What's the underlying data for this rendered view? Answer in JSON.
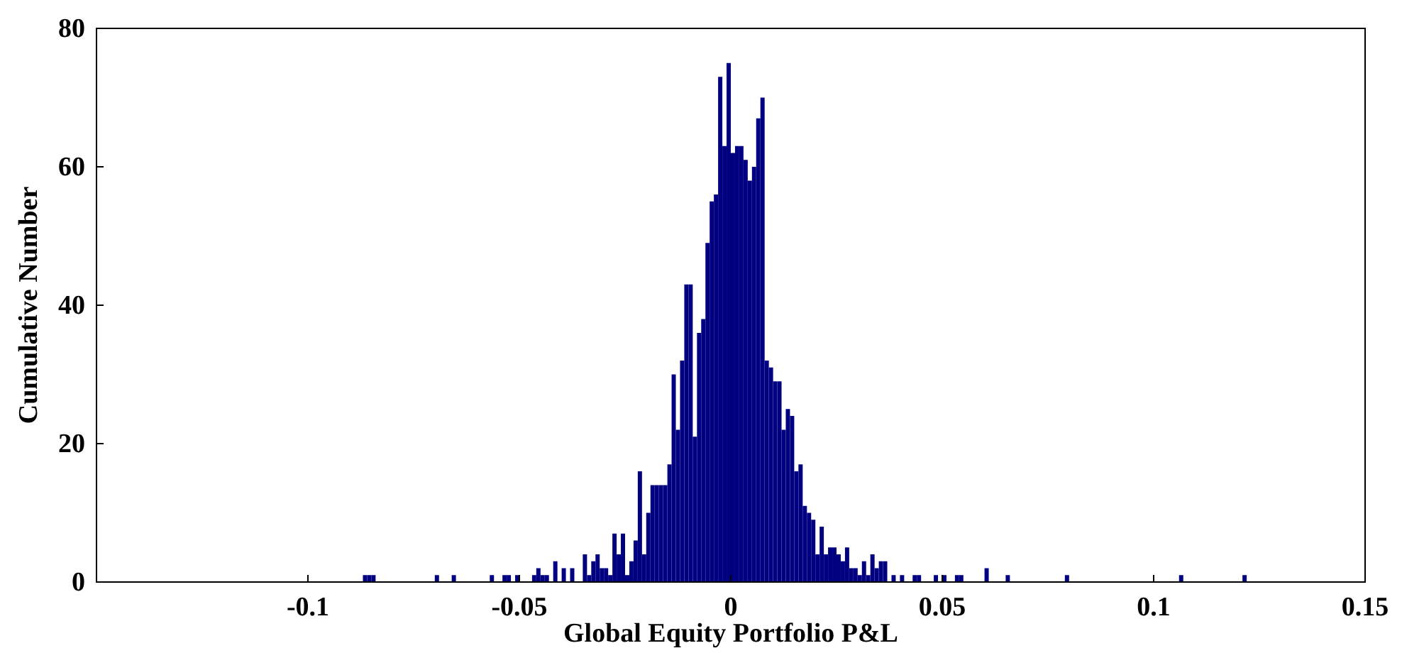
{
  "chart_data": {
    "type": "histogram",
    "xlabel": "Global Equity Portfolio P&L",
    "ylabel": "Cumulative Number",
    "color": "#000080",
    "bins": [
      -0.087,
      -0.086,
      -0.085,
      -0.084,
      -0.083,
      -0.082,
      -0.081,
      -0.08,
      -0.079,
      -0.078,
      -0.077,
      -0.076,
      -0.075,
      -0.074,
      -0.073,
      -0.072,
      -0.071,
      -0.07,
      -0.069,
      -0.068,
      -0.067,
      -0.066,
      -0.065,
      -0.064,
      -0.063,
      -0.062,
      -0.061,
      -0.06,
      -0.059,
      -0.058,
      -0.057,
      -0.056,
      -0.055,
      -0.054,
      -0.053,
      -0.052,
      -0.051,
      -0.05,
      -0.049,
      -0.048,
      -0.047,
      -0.046,
      -0.045,
      -0.044,
      -0.043,
      -0.042,
      -0.041,
      -0.04,
      -0.039,
      -0.038,
      -0.037,
      -0.036,
      -0.035,
      -0.034,
      -0.033,
      -0.032,
      -0.031,
      -0.03,
      -0.029,
      -0.028,
      -0.027,
      -0.026,
      -0.025,
      -0.024,
      -0.023,
      -0.022,
      -0.021,
      -0.02,
      -0.019,
      -0.018,
      -0.017,
      -0.016,
      -0.015,
      -0.014,
      -0.013,
      -0.012,
      -0.011,
      -0.01,
      -0.009,
      -0.008,
      -0.007,
      -0.006,
      -0.005,
      -0.004,
      -0.003,
      -0.002,
      -0.001,
      0,
      0.001,
      0.002,
      0.003,
      0.004,
      0.005,
      0.006,
      0.007,
      0.008,
      0.009,
      0.01,
      0.011,
      0.012,
      0.013,
      0.014,
      0.015,
      0.016,
      0.017,
      0.018,
      0.019,
      0.02,
      0.021,
      0.022,
      0.023,
      0.024,
      0.025,
      0.026,
      0.027,
      0.028,
      0.029,
      0.03,
      0.031,
      0.032,
      0.033,
      0.034,
      0.035,
      0.036,
      0.037,
      0.038,
      0.039,
      0.04,
      0.041,
      0.042,
      0.043,
      0.044,
      0.045,
      0.046,
      0.047,
      0.048,
      0.049,
      0.05,
      0.051,
      0.052,
      0.053,
      0.054,
      0.055,
      0.056,
      0.057,
      0.058,
      0.059,
      0.06,
      0.061,
      0.062,
      0.063,
      0.064,
      0.065,
      0.066,
      0.067,
      0.068,
      0.069,
      0.07,
      0.071,
      0.072,
      0.073,
      0.074,
      0.075,
      0.076,
      0.077,
      0.078,
      0.079,
      0.08,
      0.081,
      0.082,
      0.083,
      0.084,
      0.085,
      0.086,
      0.087,
      0.088,
      0.089,
      0.09,
      0.091,
      0.092,
      0.093,
      0.094,
      0.095,
      0.096,
      0.097,
      0.098,
      0.099,
      0.1,
      0.101,
      0.102,
      0.103,
      0.104,
      0.105,
      0.106,
      0.107,
      0.108,
      0.109,
      0.11,
      0.111,
      0.112,
      0.113,
      0.114,
      0.115,
      0.116,
      0.117,
      0.118,
      0.119,
      0.12,
      0.121,
      0.122
    ],
    "values": [
      1,
      1,
      1,
      0,
      0,
      0,
      0,
      0,
      0,
      0,
      0,
      0,
      0,
      0,
      0,
      0,
      0,
      1,
      0,
      0,
      0,
      1,
      0,
      0,
      0,
      0,
      0,
      0,
      0,
      0,
      1,
      0,
      0,
      1,
      1,
      0,
      1,
      0,
      0,
      0,
      1,
      2,
      1,
      1,
      0,
      3,
      0,
      2,
      0,
      2,
      0,
      0,
      4,
      1,
      3,
      4,
      2,
      2,
      1,
      7,
      4,
      7,
      1,
      3,
      6,
      16,
      4,
      10,
      14,
      14,
      14,
      14,
      17,
      30,
      22,
      32,
      43,
      43,
      21,
      36,
      38,
      49,
      55,
      56,
      73,
      63,
      75,
      62,
      63,
      63,
      61,
      58,
      60,
      67,
      70,
      32,
      31,
      29,
      29,
      22,
      25,
      24,
      16,
      17,
      11,
      10,
      9,
      4,
      8,
      4,
      5,
      5,
      4,
      3,
      5,
      2,
      2,
      1,
      3,
      1,
      4,
      2,
      3,
      3,
      0,
      1,
      0,
      1,
      0,
      0,
      1,
      1,
      0,
      0,
      0,
      1,
      0,
      1,
      0,
      0,
      1,
      1,
      0,
      0,
      0,
      0,
      0,
      2,
      0,
      0,
      0,
      0,
      1,
      0,
      0,
      0,
      0,
      0,
      0,
      0,
      0,
      0,
      0,
      0,
      0,
      0,
      1,
      0,
      0,
      0,
      0,
      0,
      0,
      0,
      0,
      0,
      0,
      0,
      0,
      0,
      0,
      0,
      0,
      0,
      0,
      0,
      0,
      0,
      0,
      0,
      0,
      0,
      0,
      1,
      0,
      0,
      0,
      0,
      0,
      0,
      0,
      0,
      0,
      0,
      0,
      0,
      0,
      0,
      1
    ],
    "xlim": [
      -0.15,
      0.15
    ],
    "xticks": [
      -0.1,
      -0.05,
      0,
      0.05,
      0.1,
      0.15
    ],
    "ylim": [
      0,
      80
    ],
    "yticks": [
      0,
      20,
      40,
      60,
      80
    ],
    "grid": false,
    "legend": false
  }
}
